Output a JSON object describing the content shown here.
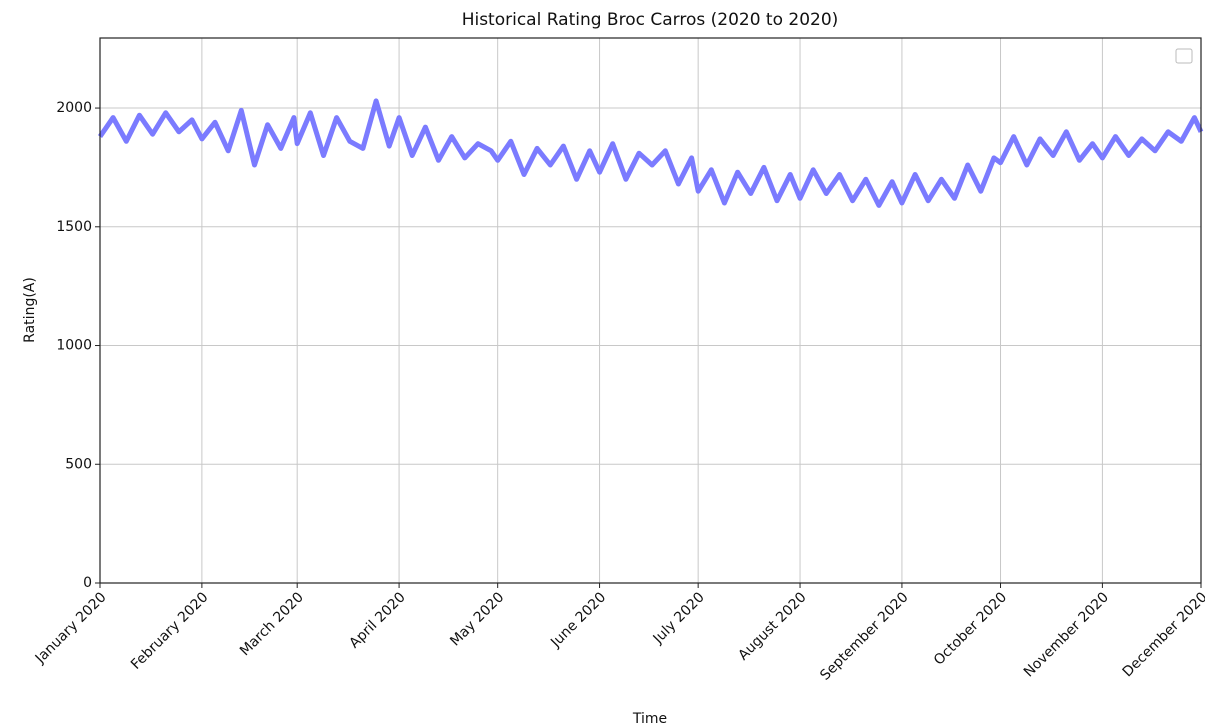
{
  "chart_data": {
    "type": "line",
    "title": "Historical Rating Broc Carros (2020 to 2020)",
    "x_label": "Time",
    "y_label": "Rating(A)",
    "legend": "upper right",
    "grid": true,
    "xlim": [
      "2020-01-01",
      "2020-12-01"
    ],
    "xticks": [
      {
        "value": "2020-01-01",
        "label": "January 2020"
      },
      {
        "value": "2020-02-01",
        "label": "February 2020"
      },
      {
        "value": "2020-03-01",
        "label": "March 2020"
      },
      {
        "value": "2020-04-01",
        "label": "April 2020"
      },
      {
        "value": "2020-05-01",
        "label": "May 2020"
      },
      {
        "value": "2020-06-01",
        "label": "June 2020"
      },
      {
        "value": "2020-07-01",
        "label": "July 2020"
      },
      {
        "value": "2020-08-01",
        "label": "August 2020"
      },
      {
        "value": "2020-09-01",
        "label": "September 2020"
      },
      {
        "value": "2020-10-01",
        "label": "October 2020"
      },
      {
        "value": "2020-11-01",
        "label": "November 2020"
      },
      {
        "value": "2020-12-01",
        "label": "December 2020"
      }
    ],
    "ylim": [
      0,
      2295
    ],
    "yticks": [
      0,
      500,
      1000,
      1500,
      2000
    ],
    "x": [
      "2020-01-01",
      "2020-01-05",
      "2020-01-09",
      "2020-01-13",
      "2020-01-17",
      "2020-01-21",
      "2020-01-25",
      "2020-01-29",
      "2020-02-01",
      "2020-02-05",
      "2020-02-09",
      "2020-02-13",
      "2020-02-17",
      "2020-02-21",
      "2020-02-25",
      "2020-02-29",
      "2020-03-01",
      "2020-03-05",
      "2020-03-09",
      "2020-03-13",
      "2020-03-17",
      "2020-03-21",
      "2020-03-25",
      "2020-03-29",
      "2020-04-01",
      "2020-04-05",
      "2020-04-09",
      "2020-04-13",
      "2020-04-17",
      "2020-04-21",
      "2020-04-25",
      "2020-04-29",
      "2020-05-01",
      "2020-05-05",
      "2020-05-09",
      "2020-05-13",
      "2020-05-17",
      "2020-05-21",
      "2020-05-25",
      "2020-05-29",
      "2020-06-01",
      "2020-06-05",
      "2020-06-09",
      "2020-06-13",
      "2020-06-17",
      "2020-06-21",
      "2020-06-25",
      "2020-06-29",
      "2020-07-01",
      "2020-07-05",
      "2020-07-09",
      "2020-07-13",
      "2020-07-17",
      "2020-07-21",
      "2020-07-25",
      "2020-07-29",
      "2020-08-01",
      "2020-08-05",
      "2020-08-09",
      "2020-08-13",
      "2020-08-17",
      "2020-08-21",
      "2020-08-25",
      "2020-08-29",
      "2020-09-01",
      "2020-09-05",
      "2020-09-09",
      "2020-09-13",
      "2020-09-17",
      "2020-09-21",
      "2020-09-25",
      "2020-09-29",
      "2020-10-01",
      "2020-10-05",
      "2020-10-09",
      "2020-10-13",
      "2020-10-17",
      "2020-10-21",
      "2020-10-25",
      "2020-10-29",
      "2020-11-01",
      "2020-11-05",
      "2020-11-09",
      "2020-11-13",
      "2020-11-17",
      "2020-11-21",
      "2020-11-25",
      "2020-11-29",
      "2020-12-01"
    ],
    "series": [
      {
        "color": "#7b7bff",
        "values": [
          1880,
          1960,
          1860,
          1970,
          1890,
          1980,
          1900,
          1950,
          1870,
          1940,
          1820,
          1990,
          1760,
          1930,
          1830,
          1960,
          1850,
          1980,
          1800,
          1960,
          1860,
          1830,
          2030,
          1840,
          1960,
          1800,
          1920,
          1780,
          1880,
          1790,
          1850,
          1820,
          1780,
          1860,
          1720,
          1830,
          1760,
          1840,
          1700,
          1820,
          1730,
          1850,
          1700,
          1810,
          1760,
          1820,
          1680,
          1790,
          1650,
          1740,
          1600,
          1730,
          1640,
          1750,
          1610,
          1720,
          1620,
          1740,
          1640,
          1720,
          1610,
          1700,
          1590,
          1690,
          1600,
          1720,
          1610,
          1700,
          1620,
          1760,
          1650,
          1790,
          1770,
          1880,
          1760,
          1870,
          1800,
          1900,
          1780,
          1850,
          1790,
          1880,
          1800,
          1870,
          1820,
          1900,
          1860,
          1960,
          1900
        ]
      }
    ]
  }
}
